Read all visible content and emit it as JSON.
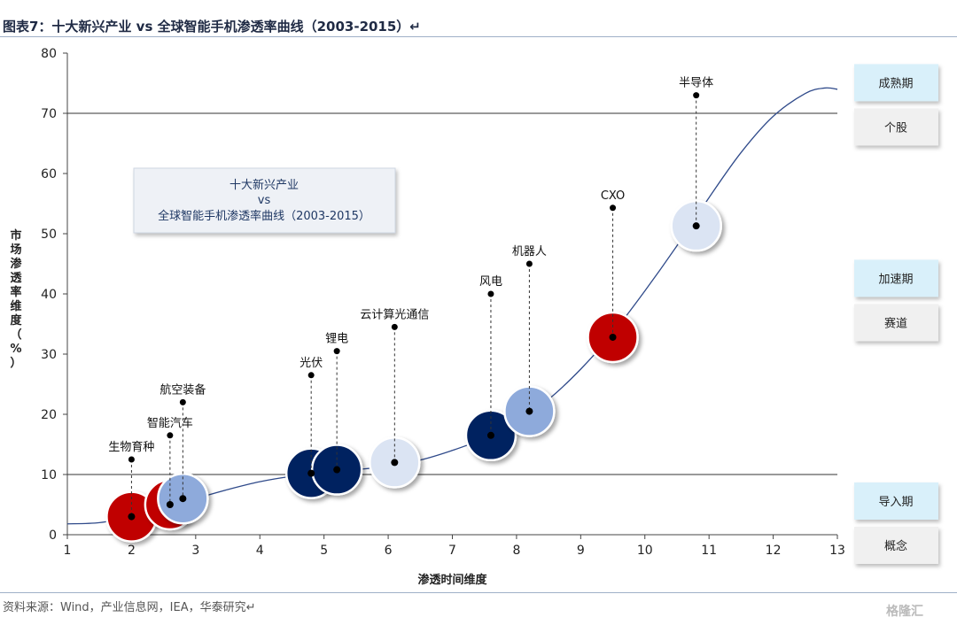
{
  "header": {
    "title": "图表7：十大新兴产业 vs 全球智能手机渗透率曲线（2003-2015）↵"
  },
  "footer": {
    "source": "资料来源：Wind，产业信息网，IEA，华泰研究↵",
    "watermark": "格隆汇"
  },
  "chart_data": {
    "type": "scatter",
    "title": "",
    "xlabel": "渗透时间维度",
    "ylabel": "市场渗透率维度（%）",
    "xlim": [
      1,
      13
    ],
    "ylim": [
      0,
      80
    ],
    "xticks": [
      1,
      2,
      3,
      4,
      5,
      6,
      7,
      8,
      9,
      10,
      11,
      12,
      13
    ],
    "yticks": [
      0,
      10,
      20,
      30,
      40,
      50,
      60,
      70,
      80
    ],
    "hlines": [
      10,
      70
    ],
    "legend_box": {
      "line1": "十大新兴产业",
      "line2": "vs",
      "line3": "全球智能手机渗透率曲线（2003-2015）"
    },
    "curve": [
      [
        1,
        1.8
      ],
      [
        1.5,
        2.0
      ],
      [
        2,
        3.0
      ],
      [
        2.5,
        4.5
      ],
      [
        3,
        6.0
      ],
      [
        3.5,
        7.5
      ],
      [
        4,
        8.8
      ],
      [
        4.5,
        9.7
      ],
      [
        5,
        10.3
      ],
      [
        5.5,
        10.8
      ],
      [
        6,
        11.4
      ],
      [
        6.5,
        12.4
      ],
      [
        7,
        14.0
      ],
      [
        7.5,
        16.0
      ],
      [
        8,
        18.7
      ],
      [
        8.5,
        22.5
      ],
      [
        9,
        27.5
      ],
      [
        9.5,
        33.5
      ],
      [
        10,
        40.5
      ],
      [
        10.5,
        48.0
      ],
      [
        11,
        56.0
      ],
      [
        11.5,
        63.5
      ],
      [
        12,
        69.5
      ],
      [
        12.5,
        73.3
      ],
      [
        12.8,
        74.2
      ],
      [
        13,
        74.0
      ]
    ],
    "points": [
      {
        "name": "生物育种",
        "x": 2.0,
        "y": 3.0,
        "label_y": 12.5,
        "color": "#c00000"
      },
      {
        "name": "智能汽车",
        "x": 2.6,
        "y": 5.0,
        "label_y": 16.5,
        "color": "#c00000"
      },
      {
        "name": "航空装备",
        "x": 2.8,
        "y": 6.0,
        "label_y": 22.0,
        "color": "#8eaadb"
      },
      {
        "name": "光伏",
        "x": 4.8,
        "y": 10.2,
        "label_y": 26.5,
        "color": "#002060"
      },
      {
        "name": "锂电",
        "x": 5.2,
        "y": 10.8,
        "label_y": 30.5,
        "color": "#002060"
      },
      {
        "name": "云计算光通信",
        "x": 6.1,
        "y": 12.0,
        "label_y": 34.5,
        "color": "#dbe4f3"
      },
      {
        "name": "风电",
        "x": 7.6,
        "y": 16.5,
        "label_y": 40.0,
        "color": "#002060"
      },
      {
        "name": "机器人",
        "x": 8.2,
        "y": 20.5,
        "label_y": 45.0,
        "color": "#8eaadb"
      },
      {
        "name": "CXO",
        "x": 9.5,
        "y": 32.8,
        "label_y": 54.3,
        "color": "#c00000"
      },
      {
        "name": "半导体",
        "x": 10.8,
        "y": 51.3,
        "label_y": 73.0,
        "color": "#dbe4f3"
      }
    ],
    "stages": [
      {
        "stage": "成熟期",
        "type": "个股",
        "y": 74.5
      },
      {
        "stage": "加速期",
        "type": "赛道",
        "y": 42.0
      },
      {
        "stage": "导入期",
        "type": "概念",
        "y": 5.0
      }
    ]
  }
}
